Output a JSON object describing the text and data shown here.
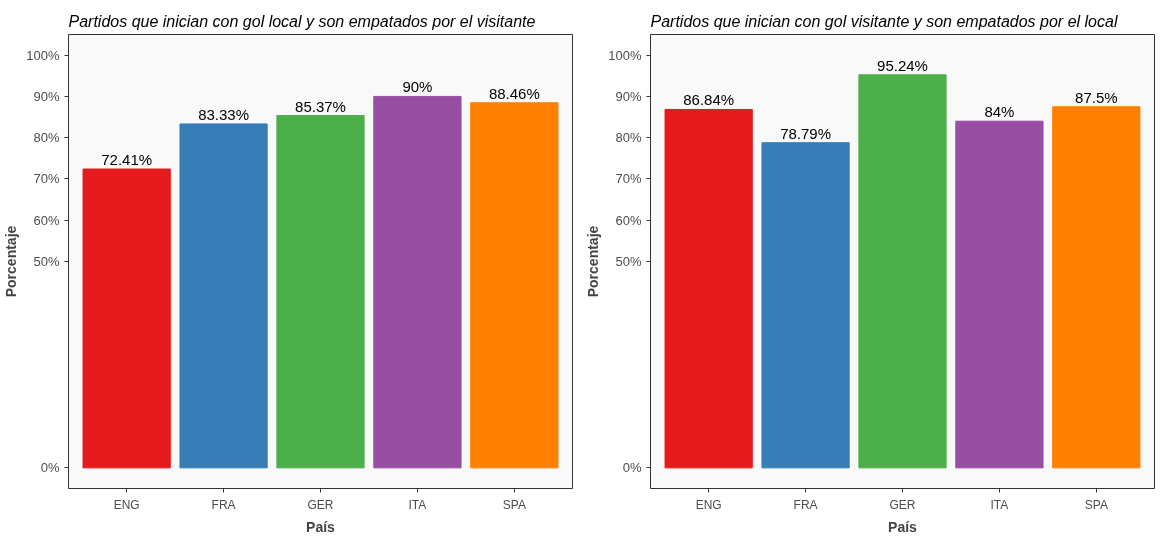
{
  "chart_data": [
    {
      "type": "bar",
      "title": "Partidos que inician con gol local y son empatados por el visitante",
      "xlabel": "País",
      "ylabel": "Porcentaje",
      "categories": [
        "ENG",
        "FRA",
        "GER",
        "ITA",
        "SPA"
      ],
      "values": [
        72.41,
        83.33,
        85.37,
        90,
        88.46
      ],
      "value_labels": [
        "72.41%",
        "83.33%",
        "85.37%",
        "90%",
        "88.46%"
      ],
      "colors": [
        "#e41a1c",
        "#377eb8",
        "#4daf4a",
        "#984ea3",
        "#ff7f00"
      ],
      "ylim": [
        -5,
        105
      ],
      "yticks": [
        {
          "value": 0,
          "label": "0%"
        },
        {
          "value": 50,
          "label": "50%"
        },
        {
          "value": 60,
          "label": "60%"
        },
        {
          "value": 70,
          "label": "70%"
        },
        {
          "value": 80,
          "label": "80%"
        },
        {
          "value": 90,
          "label": "90%"
        },
        {
          "value": 100,
          "label": "100%"
        }
      ],
      "grid": false
    },
    {
      "type": "bar",
      "title": "Partidos que inician con gol visitante y son empatados por el local",
      "xlabel": "País",
      "ylabel": "Porcentaje",
      "categories": [
        "ENG",
        "FRA",
        "GER",
        "ITA",
        "SPA"
      ],
      "values": [
        86.84,
        78.79,
        95.24,
        84,
        87.5
      ],
      "value_labels": [
        "86.84%",
        "78.79%",
        "95.24%",
        "84%",
        "87.5%"
      ],
      "colors": [
        "#e41a1c",
        "#377eb8",
        "#4daf4a",
        "#984ea3",
        "#ff7f00"
      ],
      "ylim": [
        -5,
        105
      ],
      "yticks": [
        {
          "value": 0,
          "label": "0%"
        },
        {
          "value": 50,
          "label": "50%"
        },
        {
          "value": 60,
          "label": "60%"
        },
        {
          "value": 70,
          "label": "70%"
        },
        {
          "value": 80,
          "label": "80%"
        },
        {
          "value": 90,
          "label": "90%"
        },
        {
          "value": 100,
          "label": "100%"
        }
      ],
      "grid": false
    }
  ]
}
